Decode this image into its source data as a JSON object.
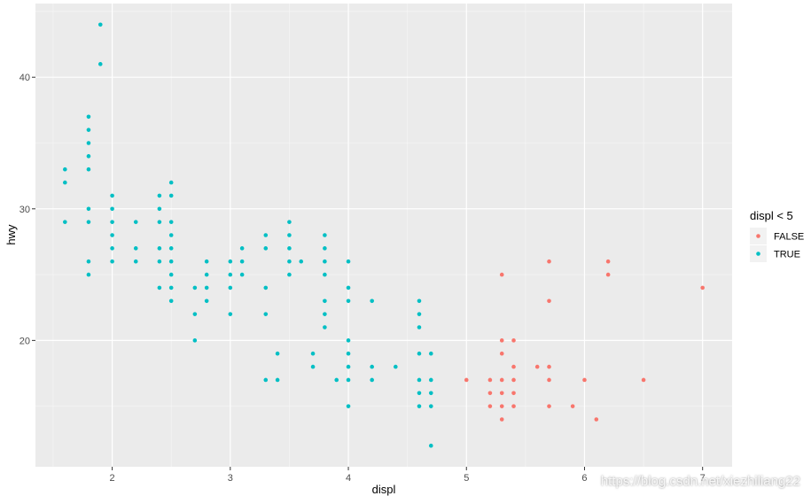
{
  "chart_data": {
    "type": "scatter",
    "title": "",
    "xlabel": "displ",
    "ylabel": "hwy",
    "xlim": [
      1.35,
      7.25
    ],
    "ylim": [
      10.4,
      45.6
    ],
    "x_ticks": [
      2,
      3,
      4,
      5,
      6,
      7
    ],
    "y_ticks": [
      20,
      30,
      40
    ],
    "x_minor_ticks": [
      1.5,
      2.5,
      3.5,
      4.5,
      5.5,
      6.5
    ],
    "y_minor_ticks": [
      15,
      25,
      35,
      45
    ],
    "grid": true,
    "legend": {
      "title": "displ < 5",
      "position": "right",
      "entries": [
        {
          "label": "FALSE",
          "color": "#F8766D"
        },
        {
          "label": "TRUE",
          "color": "#00BFC4"
        }
      ]
    },
    "series": [
      {
        "name": "FALSE",
        "color": "#F8766D",
        "points": [
          [
            5.0,
            17
          ],
          [
            5.2,
            17
          ],
          [
            5.2,
            16
          ],
          [
            5.2,
            15
          ],
          [
            5.3,
            25
          ],
          [
            5.3,
            20
          ],
          [
            5.3,
            19
          ],
          [
            5.3,
            17
          ],
          [
            5.3,
            16
          ],
          [
            5.3,
            15
          ],
          [
            5.3,
            14
          ],
          [
            5.4,
            20
          ],
          [
            5.4,
            18
          ],
          [
            5.4,
            17
          ],
          [
            5.4,
            16
          ],
          [
            5.4,
            15
          ],
          [
            5.6,
            18
          ],
          [
            5.7,
            26
          ],
          [
            5.7,
            23
          ],
          [
            5.7,
            18
          ],
          [
            5.7,
            17
          ],
          [
            5.7,
            15
          ],
          [
            5.9,
            15
          ],
          [
            6.0,
            17
          ],
          [
            6.1,
            14
          ],
          [
            6.2,
            26
          ],
          [
            6.2,
            25
          ],
          [
            6.5,
            17
          ],
          [
            7.0,
            24
          ]
        ]
      },
      {
        "name": "TRUE",
        "color": "#00BFC4",
        "points": [
          [
            1.6,
            33
          ],
          [
            1.6,
            32
          ],
          [
            1.6,
            29
          ],
          [
            1.8,
            37
          ],
          [
            1.8,
            36
          ],
          [
            1.8,
            35
          ],
          [
            1.8,
            34
          ],
          [
            1.8,
            33
          ],
          [
            1.8,
            30
          ],
          [
            1.8,
            29
          ],
          [
            1.8,
            26
          ],
          [
            1.8,
            25
          ],
          [
            1.9,
            44
          ],
          [
            1.9,
            41
          ],
          [
            2.0,
            31
          ],
          [
            2.0,
            30
          ],
          [
            2.0,
            29
          ],
          [
            2.0,
            28
          ],
          [
            2.0,
            27
          ],
          [
            2.0,
            26
          ],
          [
            2.2,
            29
          ],
          [
            2.2,
            27
          ],
          [
            2.2,
            26
          ],
          [
            2.4,
            31
          ],
          [
            2.4,
            30
          ],
          [
            2.4,
            29
          ],
          [
            2.4,
            27
          ],
          [
            2.4,
            26
          ],
          [
            2.4,
            24
          ],
          [
            2.5,
            32
          ],
          [
            2.5,
            31
          ],
          [
            2.5,
            29
          ],
          [
            2.5,
            28
          ],
          [
            2.5,
            27
          ],
          [
            2.5,
            26
          ],
          [
            2.5,
            25
          ],
          [
            2.5,
            24
          ],
          [
            2.5,
            23
          ],
          [
            2.7,
            24
          ],
          [
            2.7,
            22
          ],
          [
            2.7,
            20
          ],
          [
            2.8,
            26
          ],
          [
            2.8,
            25
          ],
          [
            2.8,
            24
          ],
          [
            2.8,
            23
          ],
          [
            3.0,
            26
          ],
          [
            3.0,
            25
          ],
          [
            3.0,
            24
          ],
          [
            3.0,
            22
          ],
          [
            3.1,
            27
          ],
          [
            3.1,
            26
          ],
          [
            3.1,
            25
          ],
          [
            3.3,
            28
          ],
          [
            3.3,
            27
          ],
          [
            3.3,
            24
          ],
          [
            3.3,
            22
          ],
          [
            3.3,
            17
          ],
          [
            3.4,
            19
          ],
          [
            3.4,
            17
          ],
          [
            3.5,
            29
          ],
          [
            3.5,
            28
          ],
          [
            3.5,
            27
          ],
          [
            3.5,
            26
          ],
          [
            3.5,
            25
          ],
          [
            3.6,
            26
          ],
          [
            3.7,
            19
          ],
          [
            3.7,
            18
          ],
          [
            3.8,
            28
          ],
          [
            3.8,
            27
          ],
          [
            3.8,
            26
          ],
          [
            3.8,
            25
          ],
          [
            3.8,
            23
          ],
          [
            3.8,
            22
          ],
          [
            3.8,
            21
          ],
          [
            3.9,
            17
          ],
          [
            4.0,
            26
          ],
          [
            4.0,
            24
          ],
          [
            4.0,
            23
          ],
          [
            4.0,
            20
          ],
          [
            4.0,
            19
          ],
          [
            4.0,
            18
          ],
          [
            4.0,
            17
          ],
          [
            4.0,
            15
          ],
          [
            4.2,
            23
          ],
          [
            4.2,
            18
          ],
          [
            4.2,
            17
          ],
          [
            4.4,
            18
          ],
          [
            4.6,
            23
          ],
          [
            4.6,
            22
          ],
          [
            4.6,
            21
          ],
          [
            4.6,
            19
          ],
          [
            4.6,
            17
          ],
          [
            4.6,
            16
          ],
          [
            4.6,
            15
          ],
          [
            4.7,
            19
          ],
          [
            4.7,
            17
          ],
          [
            4.7,
            16
          ],
          [
            4.7,
            15
          ],
          [
            4.7,
            12
          ]
        ]
      }
    ]
  },
  "watermark": "https://blog.csdn.net/xiezhiliang22"
}
